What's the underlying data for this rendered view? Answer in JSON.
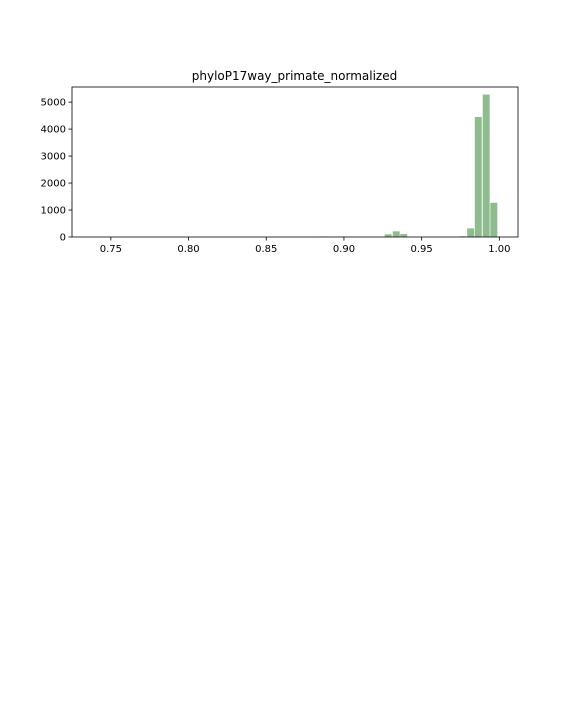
{
  "chart_data": {
    "type": "bar",
    "title": "phyloP17way_primate_normalized",
    "xlabel": "",
    "ylabel": "",
    "xlim": [
      0.725,
      1.012
    ],
    "ylim": [
      0,
      5560
    ],
    "x_ticks": [
      {
        "value": 0.75,
        "label": "0.75"
      },
      {
        "value": 0.8,
        "label": "0.80"
      },
      {
        "value": 0.85,
        "label": "0.85"
      },
      {
        "value": 0.9,
        "label": "0.90"
      },
      {
        "value": 0.95,
        "label": "0.95"
      },
      {
        "value": 1.0,
        "label": "1.00"
      }
    ],
    "y_ticks": [
      {
        "value": 0,
        "label": "0"
      },
      {
        "value": 1000,
        "label": "1000"
      },
      {
        "value": 2000,
        "label": "2000"
      },
      {
        "value": 3000,
        "label": "3000"
      },
      {
        "value": 4000,
        "label": "4000"
      },
      {
        "value": 5000,
        "label": "5000"
      }
    ],
    "bin_width": 0.005,
    "bars": [
      {
        "x0": 0.8845,
        "value": 15
      },
      {
        "x0": 0.9262,
        "value": 100
      },
      {
        "x0": 0.9314,
        "value": 210
      },
      {
        "x0": 0.9362,
        "value": 110
      },
      {
        "x0": 0.9742,
        "value": 25
      },
      {
        "x0": 0.9793,
        "value": 320
      },
      {
        "x0": 0.9842,
        "value": 4450
      },
      {
        "x0": 0.9893,
        "value": 5280
      },
      {
        "x0": 0.9942,
        "value": 1270
      }
    ],
    "bar_color": "#8fbc8f",
    "grid": false,
    "legend": "none"
  }
}
